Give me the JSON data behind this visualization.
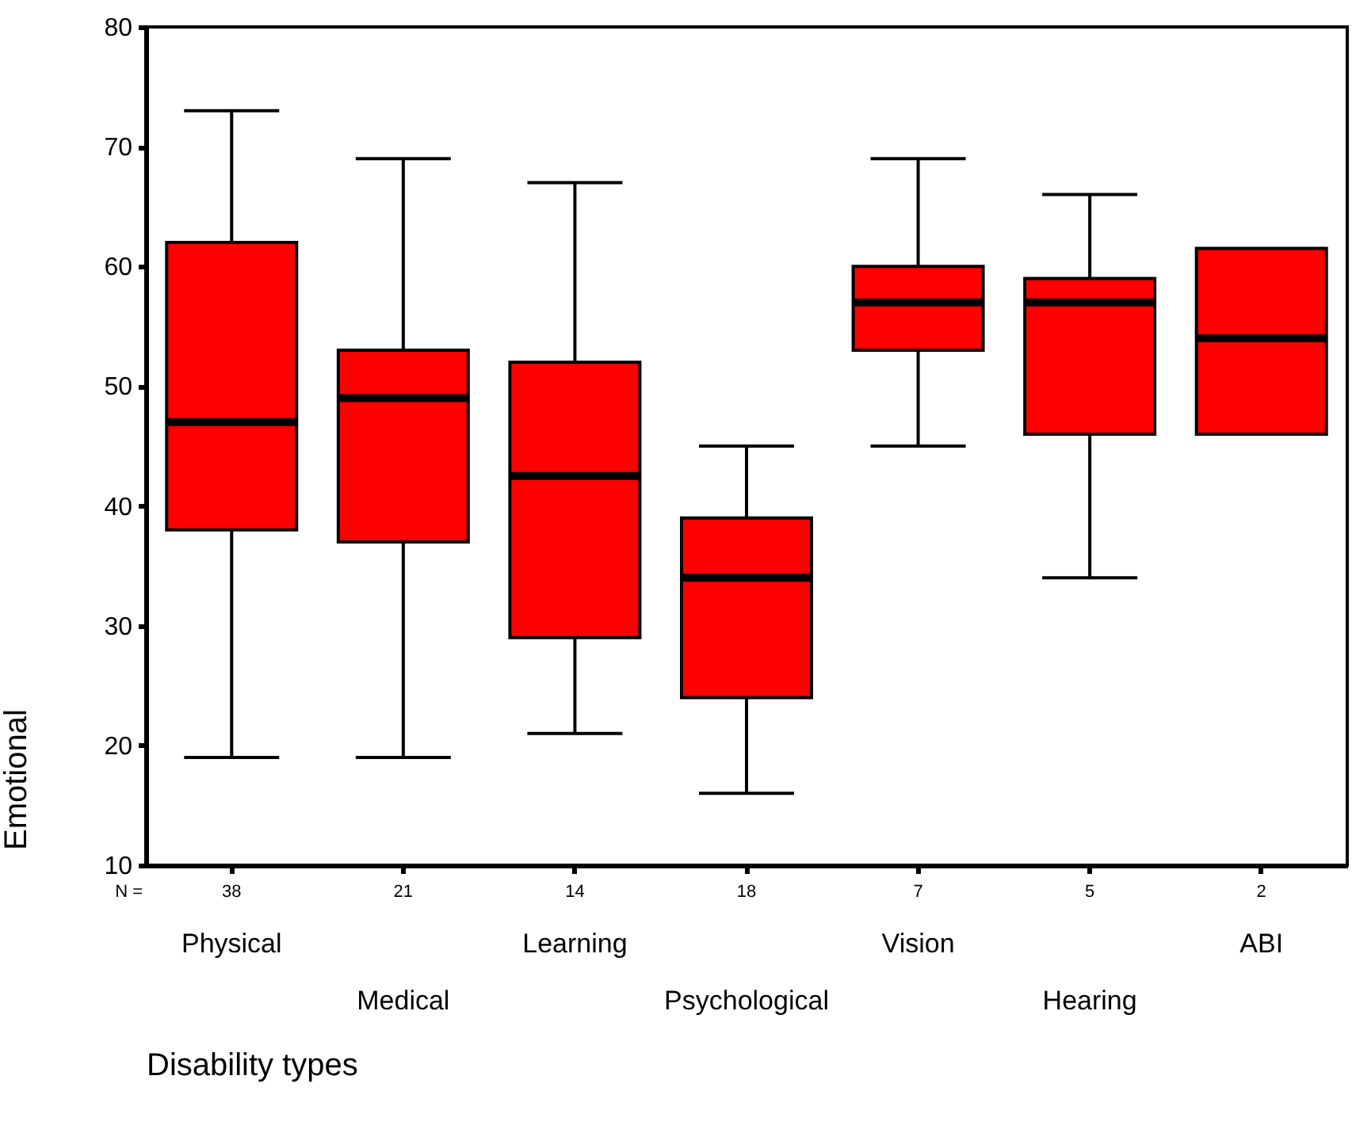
{
  "chart_data": {
    "type": "box",
    "xlabel": "Disability types",
    "ylabel": "Emotional",
    "categories": [
      "Physical",
      "Medical",
      "Learning",
      "Psychological",
      "Vision",
      "Hearing",
      "ABI"
    ],
    "color": "#ff0000",
    "ylim": [
      10,
      80
    ],
    "yticks": [
      10,
      20,
      30,
      40,
      50,
      60,
      70,
      80
    ],
    "grid": false,
    "boxes": [
      {
        "low": 19,
        "q1": 38,
        "median": 47,
        "q3": 62,
        "high": 73
      },
      {
        "low": 19,
        "q1": 37,
        "median": 49,
        "q3": 53,
        "high": 69
      },
      {
        "low": 21,
        "q1": 29,
        "median": 42.5,
        "q3": 52,
        "high": 67
      },
      {
        "low": 16,
        "q1": 24,
        "median": 34,
        "q3": 39,
        "high": 45
      },
      {
        "low": 45,
        "q1": 53,
        "median": 57,
        "q3": 60,
        "high": 69
      },
      {
        "low": 34,
        "q1": 46,
        "median": 57,
        "q3": 59,
        "high": 66
      },
      {
        "low": 46,
        "q1": 46,
        "median": 54,
        "q3": 61.5,
        "high": 61.5
      }
    ],
    "annotations": [
      "N =",
      "38",
      "21",
      "14",
      "18",
      "7",
      "5",
      "2"
    ]
  }
}
